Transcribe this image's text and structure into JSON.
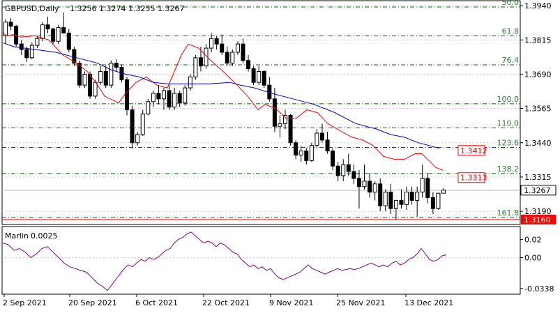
{
  "chart_data": {
    "type": "candlestick",
    "symbol": "GBPUSD,Daily",
    "ohlc_header": "1.3256 1.3274 1.3255 1.3267",
    "current_price": {
      "value": 1.3267,
      "label": "1.3267"
    },
    "price_axis": {
      "ylim": [
        1.3142,
        1.3958
      ],
      "ticks": [
        {
          "value": 1.394,
          "label": "1.3940"
        },
        {
          "value": 1.3815,
          "label": "1.3815"
        },
        {
          "value": 1.369,
          "label": "1.3690"
        },
        {
          "value": 1.3565,
          "label": "1.3565"
        },
        {
          "value": 1.344,
          "label": "1.3440"
        },
        {
          "value": 1.3315,
          "label": "1.3315"
        },
        {
          "value": 1.319,
          "label": "1.3190"
        }
      ]
    },
    "x_labels": [
      "2 Sep 2021",
      "20 Sep 2021",
      "6 Oct 2021",
      "22 Oct 2021",
      "9 Nov 2021",
      "25 Nov 2021",
      "13 Dec 2021"
    ],
    "fib_levels": [
      {
        "label": "50.0",
        "value": 1.3935
      },
      {
        "label": "61.8",
        "value": 1.383
      },
      {
        "label": "76.4",
        "value": 1.3724
      },
      {
        "label": "100.0",
        "value": 1.3582
      },
      {
        "label": "110.0",
        "value": 1.3494
      },
      {
        "label": "123.6",
        "value": 1.3423
      },
      {
        "label": "138.2",
        "value": 1.3328
      },
      {
        "label": "161.8",
        "value": 1.3168
      }
    ],
    "price_tags": [
      {
        "label": "1.3412",
        "value": 1.3412
      },
      {
        "label": "1.3313",
        "value": 1.3313
      }
    ],
    "support_level": {
      "label": "1.3160",
      "value": 1.316
    },
    "candles": [
      [
        1.383,
        1.389,
        1.38,
        1.388
      ],
      [
        1.388,
        1.3895,
        1.385,
        1.3865
      ],
      [
        1.3865,
        1.387,
        1.379,
        1.38
      ],
      [
        1.38,
        1.3815,
        1.376,
        1.378
      ],
      [
        1.378,
        1.379,
        1.3735,
        1.375
      ],
      [
        1.375,
        1.3805,
        1.3745,
        1.3795
      ],
      [
        1.3795,
        1.383,
        1.3785,
        1.382
      ],
      [
        1.382,
        1.388,
        1.381,
        1.387
      ],
      [
        1.387,
        1.39,
        1.384,
        1.3855
      ],
      [
        1.3855,
        1.386,
        1.38,
        1.381
      ],
      [
        1.381,
        1.387,
        1.38,
        1.386
      ],
      [
        1.386,
        1.3915,
        1.3845,
        1.384
      ],
      [
        1.384,
        1.3855,
        1.377,
        1.378
      ],
      [
        1.378,
        1.379,
        1.372,
        1.373
      ],
      [
        1.373,
        1.374,
        1.364,
        1.365
      ],
      [
        1.365,
        1.37,
        1.364,
        1.369
      ],
      [
        1.369,
        1.37,
        1.36,
        1.361
      ],
      [
        1.361,
        1.367,
        1.36,
        1.366
      ],
      [
        1.366,
        1.372,
        1.365,
        1.37
      ],
      [
        1.37,
        1.372,
        1.364,
        1.365
      ],
      [
        1.365,
        1.374,
        1.364,
        1.373
      ],
      [
        1.373,
        1.3745,
        1.37,
        1.3715
      ],
      [
        1.3715,
        1.3725,
        1.366,
        1.367
      ],
      [
        1.367,
        1.368,
        1.354,
        1.356
      ],
      [
        1.356,
        1.3575,
        1.342,
        1.344
      ],
      [
        1.344,
        1.348,
        1.343,
        1.347
      ],
      [
        1.347,
        1.356,
        1.3465,
        1.3545
      ],
      [
        1.3545,
        1.36,
        1.354,
        1.359
      ],
      [
        1.359,
        1.363,
        1.357,
        1.362
      ],
      [
        1.362,
        1.365,
        1.358,
        1.36
      ],
      [
        1.36,
        1.364,
        1.356,
        1.363
      ],
      [
        1.363,
        1.365,
        1.356,
        1.357
      ],
      [
        1.357,
        1.364,
        1.356,
        1.362
      ],
      [
        1.362,
        1.363,
        1.357,
        1.3585
      ],
      [
        1.3585,
        1.365,
        1.3575,
        1.364
      ],
      [
        1.364,
        1.369,
        1.363,
        1.368
      ],
      [
        1.368,
        1.376,
        1.367,
        1.375
      ],
      [
        1.375,
        1.379,
        1.37,
        1.372
      ],
      [
        1.372,
        1.38,
        1.371,
        1.3785
      ],
      [
        1.3785,
        1.384,
        1.377,
        1.382
      ],
      [
        1.382,
        1.383,
        1.378,
        1.38
      ],
      [
        1.38,
        1.3835,
        1.376,
        1.377
      ],
      [
        1.377,
        1.379,
        1.372,
        1.373
      ],
      [
        1.373,
        1.378,
        1.372,
        1.377
      ],
      [
        1.377,
        1.381,
        1.376,
        1.38
      ],
      [
        1.38,
        1.382,
        1.373,
        1.374
      ],
      [
        1.374,
        1.376,
        1.37,
        1.371
      ],
      [
        1.371,
        1.372,
        1.365,
        1.366
      ],
      [
        1.366,
        1.372,
        1.365,
        1.37
      ],
      [
        1.37,
        1.3705,
        1.364,
        1.365
      ],
      [
        1.365,
        1.368,
        1.359,
        1.36
      ],
      [
        1.36,
        1.364,
        1.348,
        1.35
      ],
      [
        1.35,
        1.354,
        1.346,
        1.351
      ],
      [
        1.351,
        1.356,
        1.349,
        1.354
      ],
      [
        1.354,
        1.3545,
        1.343,
        1.344
      ],
      [
        1.344,
        1.345,
        1.338,
        1.3395
      ],
      [
        1.3395,
        1.343,
        1.337,
        1.341
      ],
      [
        1.341,
        1.342,
        1.336,
        1.3375
      ],
      [
        1.3375,
        1.344,
        1.337,
        1.343
      ],
      [
        1.343,
        1.349,
        1.342,
        1.3475
      ],
      [
        1.3475,
        1.351,
        1.344,
        1.345
      ],
      [
        1.345,
        1.348,
        1.34,
        1.341
      ],
      [
        1.341,
        1.342,
        1.334,
        1.3355
      ],
      [
        1.3355,
        1.337,
        1.33,
        1.332
      ],
      [
        1.332,
        1.338,
        1.33,
        1.336
      ],
      [
        1.336,
        1.34,
        1.332,
        1.3335
      ],
      [
        1.3335,
        1.336,
        1.329,
        1.331
      ],
      [
        1.331,
        1.334,
        1.32,
        1.328
      ],
      [
        1.328,
        1.336,
        1.327,
        1.33
      ],
      [
        1.33,
        1.333,
        1.324,
        1.326
      ],
      [
        1.326,
        1.33,
        1.323,
        1.329
      ],
      [
        1.329,
        1.331,
        1.319,
        1.321
      ],
      [
        1.321,
        1.327,
        1.319,
        1.326
      ],
      [
        1.326,
        1.329,
        1.318,
        1.32
      ],
      [
        1.32,
        1.323,
        1.316,
        1.323
      ],
      [
        1.323,
        1.327,
        1.32,
        1.3215
      ],
      [
        1.3215,
        1.328,
        1.3195,
        1.326
      ],
      [
        1.326,
        1.328,
        1.3215,
        1.323
      ],
      [
        1.323,
        1.328,
        1.317,
        1.326
      ],
      [
        1.326,
        1.336,
        1.324,
        1.331
      ],
      [
        1.331,
        1.333,
        1.322,
        1.324
      ],
      [
        1.324,
        1.326,
        1.318,
        1.32
      ],
      [
        1.32,
        1.325,
        1.3195,
        1.3256
      ],
      [
        1.3256,
        1.3274,
        1.3255,
        1.3267
      ]
    ],
    "ma_short": {
      "color": "#ff0000",
      "points": [
        [
          4,
          1.384
        ],
        [
          10,
          1.383
        ],
        [
          20,
          1.3835
        ],
        [
          30,
          1.3825
        ],
        [
          50,
          1.383
        ],
        [
          70,
          1.3815
        ],
        [
          90,
          1.376
        ],
        [
          110,
          1.373
        ],
        [
          125,
          1.37
        ],
        [
          140,
          1.365
        ],
        [
          150,
          1.361
        ],
        [
          170,
          1.3585
        ],
        [
          180,
          1.362
        ],
        [
          195,
          1.366
        ],
        [
          210,
          1.368
        ],
        [
          225,
          1.365
        ],
        [
          240,
          1.364
        ],
        [
          250,
          1.37
        ],
        [
          260,
          1.376
        ],
        [
          270,
          1.38
        ],
        [
          285,
          1.3785
        ],
        [
          300,
          1.3745
        ],
        [
          320,
          1.37
        ],
        [
          340,
          1.365
        ],
        [
          355,
          1.361
        ],
        [
          370,
          1.356
        ],
        [
          380,
          1.358
        ],
        [
          395,
          1.3565
        ],
        [
          410,
          1.353
        ],
        [
          425,
          1.353
        ],
        [
          440,
          1.356
        ],
        [
          455,
          1.355
        ],
        [
          470,
          1.351
        ],
        [
          490,
          1.348
        ],
        [
          505,
          1.346
        ],
        [
          520,
          1.345
        ],
        [
          535,
          1.343
        ],
        [
          550,
          1.339
        ],
        [
          565,
          1.338
        ],
        [
          580,
          1.338
        ],
        [
          595,
          1.34
        ],
        [
          605,
          1.34
        ],
        [
          615,
          1.3375
        ],
        [
          625,
          1.335
        ],
        [
          635,
          1.334
        ]
      ]
    },
    "ma_long": {
      "color": "#0000cc",
      "points": [
        [
          4,
          1.3805
        ],
        [
          20,
          1.379
        ],
        [
          50,
          1.378
        ],
        [
          80,
          1.377
        ],
        [
          110,
          1.375
        ],
        [
          140,
          1.373
        ],
        [
          160,
          1.3705
        ],
        [
          180,
          1.369
        ],
        [
          200,
          1.368
        ],
        [
          220,
          1.366
        ],
        [
          240,
          1.3655
        ],
        [
          270,
          1.3655
        ],
        [
          300,
          1.3655
        ],
        [
          330,
          1.366
        ],
        [
          345,
          1.365
        ],
        [
          365,
          1.364
        ],
        [
          390,
          1.362
        ],
        [
          420,
          1.36
        ],
        [
          450,
          1.358
        ],
        [
          480,
          1.355
        ],
        [
          510,
          1.351
        ],
        [
          540,
          1.349
        ],
        [
          560,
          1.347
        ],
        [
          580,
          1.346
        ],
        [
          600,
          1.344
        ],
        [
          615,
          1.343
        ],
        [
          630,
          1.342
        ]
      ]
    },
    "indicator": {
      "name": "Marlin",
      "value_label": "0.0025",
      "color": "#800080",
      "ylim": [
        -0.04,
        0.034
      ],
      "ticks": [
        {
          "value": 0.02,
          "label": "0.02"
        },
        {
          "value": 0.0,
          "label": "0.00"
        },
        {
          "value": -0.0338,
          "label": "-0.0338"
        }
      ],
      "points": [
        [
          4,
          0.016
        ],
        [
          12,
          0.014
        ],
        [
          20,
          0.008
        ],
        [
          28,
          0.01
        ],
        [
          36,
          0.006
        ],
        [
          44,
          0.0
        ],
        [
          52,
          0.004
        ],
        [
          60,
          0.01
        ],
        [
          68,
          0.012
        ],
        [
          76,
          0.006
        ],
        [
          84,
          0.0
        ],
        [
          92,
          -0.006
        ],
        [
          100,
          -0.01
        ],
        [
          108,
          -0.012
        ],
        [
          116,
          -0.014
        ],
        [
          124,
          -0.016
        ],
        [
          132,
          -0.022
        ],
        [
          140,
          -0.028
        ],
        [
          148,
          -0.032
        ],
        [
          154,
          -0.036
        ],
        [
          160,
          -0.03
        ],
        [
          166,
          -0.024
        ],
        [
          172,
          -0.018
        ],
        [
          178,
          -0.012
        ],
        [
          184,
          -0.008
        ],
        [
          190,
          -0.01
        ],
        [
          196,
          -0.006
        ],
        [
          202,
          -0.002
        ],
        [
          208,
          -0.004
        ],
        [
          214,
          0.0
        ],
        [
          220,
          -0.002
        ],
        [
          226,
          0.0
        ],
        [
          232,
          0.004
        ],
        [
          238,
          0.008
        ],
        [
          244,
          0.01
        ],
        [
          250,
          0.016
        ],
        [
          256,
          0.02
        ],
        [
          262,
          0.022
        ],
        [
          268,
          0.026
        ],
        [
          274,
          0.028
        ],
        [
          280,
          0.024
        ],
        [
          286,
          0.02
        ],
        [
          292,
          0.016
        ],
        [
          298,
          0.018
        ],
        [
          304,
          0.016
        ],
        [
          310,
          0.012
        ],
        [
          316,
          0.016
        ],
        [
          322,
          0.014
        ],
        [
          328,
          0.01
        ],
        [
          334,
          0.006
        ],
        [
          340,
          0.004
        ],
        [
          346,
          -0.002
        ],
        [
          352,
          -0.006
        ],
        [
          358,
          -0.01
        ],
        [
          364,
          -0.008
        ],
        [
          370,
          -0.012
        ],
        [
          376,
          -0.01
        ],
        [
          382,
          -0.014
        ],
        [
          388,
          -0.012
        ],
        [
          394,
          -0.018
        ],
        [
          400,
          -0.022
        ],
        [
          406,
          -0.024
        ],
        [
          412,
          -0.022
        ],
        [
          418,
          -0.02
        ],
        [
          424,
          -0.018
        ],
        [
          430,
          -0.016
        ],
        [
          436,
          -0.012
        ],
        [
          442,
          -0.008
        ],
        [
          448,
          -0.012
        ],
        [
          454,
          -0.014
        ],
        [
          460,
          -0.016
        ],
        [
          466,
          -0.018
        ],
        [
          472,
          -0.016
        ],
        [
          478,
          -0.014
        ],
        [
          484,
          -0.012
        ],
        [
          490,
          -0.014
        ],
        [
          496,
          -0.013
        ],
        [
          502,
          -0.012
        ],
        [
          508,
          -0.013
        ],
        [
          514,
          -0.012
        ],
        [
          520,
          -0.01
        ],
        [
          526,
          -0.008
        ],
        [
          532,
          -0.006
        ],
        [
          538,
          -0.008
        ],
        [
          544,
          -0.01
        ],
        [
          550,
          -0.008
        ],
        [
          556,
          -0.01
        ],
        [
          562,
          -0.006
        ],
        [
          568,
          -0.004
        ],
        [
          574,
          -0.008
        ],
        [
          580,
          -0.006
        ],
        [
          586,
          -0.002
        ],
        [
          592,
          0.0
        ],
        [
          598,
          0.004
        ],
        [
          604,
          0.01
        ],
        [
          610,
          0.004
        ],
        [
          616,
          -0.002
        ],
        [
          622,
          -0.004
        ],
        [
          628,
          -0.002
        ],
        [
          634,
          0.002
        ],
        [
          640,
          0.003
        ]
      ]
    }
  }
}
